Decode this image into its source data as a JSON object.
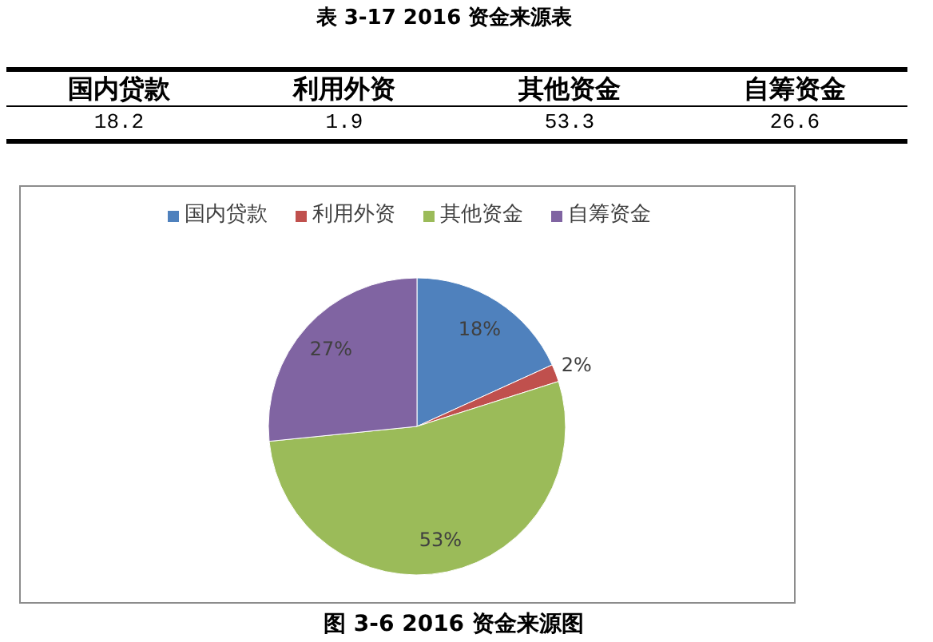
{
  "chart_data": [
    {
      "type": "other",
      "title": "表 3-17 2016 资金来源表",
      "categories": [
        "国内贷款",
        "利用外资",
        "其他资金",
        "自筹资金"
      ],
      "values": [
        18.2,
        1.9,
        53.3,
        26.6
      ],
      "data_labels": true
    },
    {
      "type": "pie",
      "categories": [
        "国内贷款",
        "利用外资",
        "其他资金",
        "自筹资金"
      ],
      "values": [
        18.2,
        1.9,
        53.3,
        26.6
      ],
      "colors": [
        "#4f81bd",
        "#c0504d",
        "#9bbb59",
        "#8064a2"
      ],
      "value_labels": [
        "18%",
        "2%",
        "53%",
        "27%"
      ],
      "legend": "top",
      "annotations": [
        "图 3-6 2016 资金来源图"
      ]
    }
  ]
}
